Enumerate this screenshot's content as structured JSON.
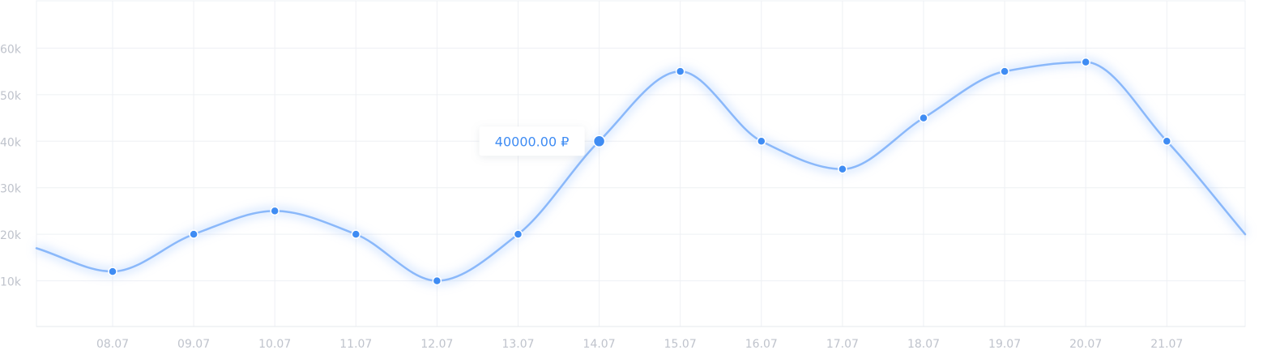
{
  "chart_data": {
    "type": "line",
    "title": "",
    "xlabel": "",
    "ylabel": "",
    "categories": [
      "08.07",
      "09.07",
      "10.07",
      "11.07",
      "12.07",
      "13.07",
      "14.07",
      "15.07",
      "16.07",
      "17.07",
      "18.07",
      "19.07",
      "20.07",
      "21.07"
    ],
    "y_ticks": [
      "10k",
      "20k",
      "30k",
      "40k",
      "50k",
      "60k"
    ],
    "ylim": [
      0,
      70000
    ],
    "series": [
      {
        "values": [
          12000,
          20000,
          25000,
          20000,
          10000,
          20000,
          40000,
          55000,
          40000,
          34000,
          45000,
          55000,
          57000,
          40000
        ]
      }
    ],
    "line_start_value": 17000,
    "line_end_value": 20000,
    "highlighted_index": 6,
    "tooltip": {
      "text": "40000.00 ₽"
    },
    "grid": true,
    "colors": {
      "line": "#8ab8fa",
      "point": "#3f8cf3",
      "grid": "#eef0f4",
      "axis_labels": "#bfc3cc"
    }
  }
}
